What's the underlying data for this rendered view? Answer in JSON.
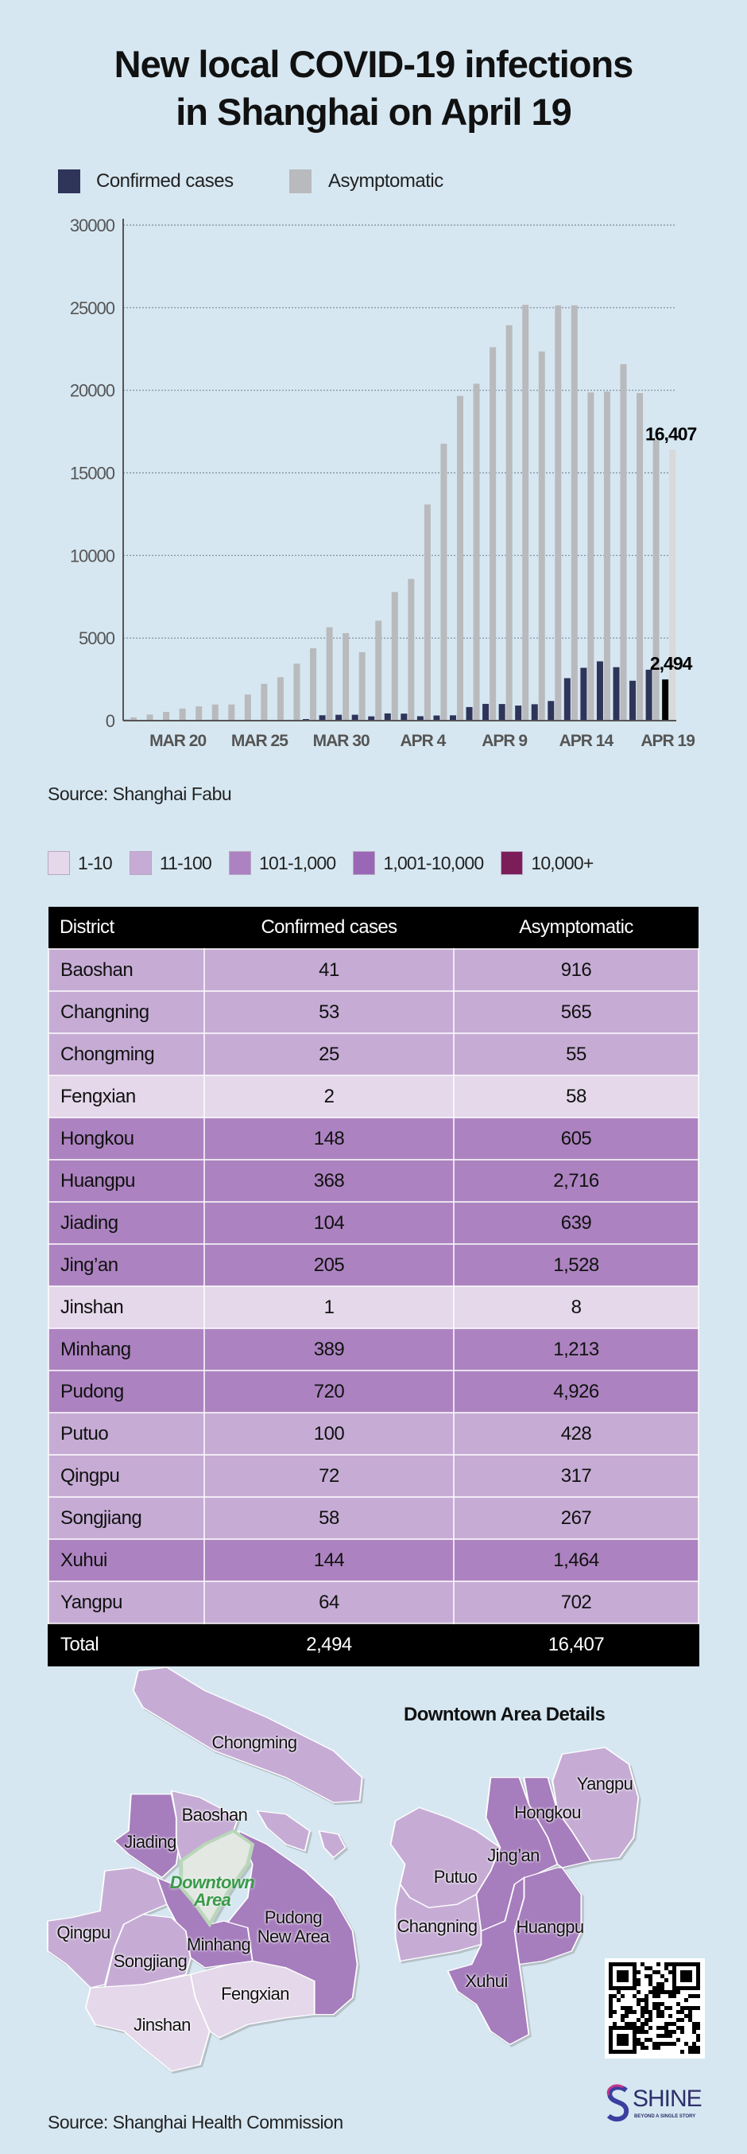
{
  "title": {
    "line1": "New local COVID-19 infections",
    "line2": "in Shanghai on April 19"
  },
  "chart_data": {
    "type": "bar",
    "title": "New local COVID-19 infections in Shanghai on April 19",
    "legend": [
      {
        "name": "Confirmed cases",
        "color": "#2f3459"
      },
      {
        "name": "Asymptomatic",
        "color": "#b9babd"
      }
    ],
    "legend_placement": "top-left",
    "x": [
      "Mar 17",
      "Mar 18",
      "Mar 19",
      "Mar 20",
      "Mar 21",
      "Mar 22",
      "Mar 23",
      "Mar 24",
      "Mar 25",
      "Mar 26",
      "Mar 27",
      "Mar 28",
      "Mar 29",
      "Mar 30",
      "Mar 31",
      "Apr 1",
      "Apr 2",
      "Apr 3",
      "Apr 4",
      "Apr 5",
      "Apr 6",
      "Apr 7",
      "Apr 8",
      "Apr 9",
      "Apr 10",
      "Apr 11",
      "Apr 12",
      "Apr 13",
      "Apr 14",
      "Apr 15",
      "Apr 16",
      "Apr 17",
      "Apr 18",
      "Apr 19"
    ],
    "x_tick_labels": [
      {
        "label": "MAR 20",
        "index": 3
      },
      {
        "label": "MAR 25",
        "index": 8
      },
      {
        "label": "MAR 30",
        "index": 13
      },
      {
        "label": "APR 4",
        "index": 18
      },
      {
        "label": "APR 9",
        "index": 23
      },
      {
        "label": "APR 14",
        "index": 28
      },
      {
        "label": "APR 19",
        "index": 33
      }
    ],
    "series": [
      {
        "name": "Confirmed cases",
        "values": [
          57,
          8,
          17,
          24,
          31,
          50,
          4,
          29,
          38,
          45,
          50,
          96,
          326,
          355,
          358,
          260,
          438,
          425,
          268,
          311,
          322,
          824,
          1015,
          1006,
          914,
          994,
          1189,
          2573,
          3200,
          3590,
          3238,
          2417,
          3084,
          2494
        ]
      },
      {
        "name": "Asymptomatic",
        "values": [
          200,
          370,
          530,
          734,
          865,
          977,
          979,
          1580,
          2231,
          2631,
          3450,
          4381,
          5656,
          5298,
          4144,
          6051,
          7788,
          8581,
          13086,
          16766,
          19660,
          20398,
          22609,
          23937,
          25173,
          22348,
          25141,
          25146,
          19872,
          19923,
          21582,
          19831,
          16983,
          16407
        ]
      }
    ],
    "yticks": [
      "0",
      "5000",
      "10000",
      "15000",
      "20000",
      "25000",
      "30000"
    ],
    "ylim": [
      0,
      30000
    ],
    "grid": true,
    "annotations": [
      {
        "text": "16,407",
        "series": "Asymptomatic",
        "index": 33
      },
      {
        "text": "2,494",
        "series": "Confirmed cases",
        "index": 33
      }
    ],
    "xlabel": "",
    "ylabel": "",
    "highlight_colors": {
      "confirmed_last": "#000000",
      "asym_last": "#d9d9d9"
    }
  },
  "chart_source": "Source: Shanghai Fabu",
  "color_legend": [
    {
      "label": "1-10",
      "color": "#e4d8ea"
    },
    {
      "label": "11-100",
      "color": "#c6acd5"
    },
    {
      "label": "101-1,000",
      "color": "#ac83c0"
    },
    {
      "label": "1,001-10,000",
      "color": "#9a67b6"
    },
    {
      "label": "10,000+",
      "color": "#7b1d58"
    }
  ],
  "table": {
    "headers": [
      "District",
      "Confirmed cases",
      "Asymptomatic"
    ],
    "rows": [
      {
        "district": "Baoshan",
        "confirmed": "41",
        "asymptomatic": "916",
        "level": 1
      },
      {
        "district": "Changning",
        "confirmed": "53",
        "asymptomatic": "565",
        "level": 1
      },
      {
        "district": "Chongming",
        "confirmed": "25",
        "asymptomatic": "55",
        "level": 1
      },
      {
        "district": "Fengxian",
        "confirmed": "2",
        "asymptomatic": "58",
        "level": 0
      },
      {
        "district": "Hongkou",
        "confirmed": "148",
        "asymptomatic": "605",
        "level": 2
      },
      {
        "district": "Huangpu",
        "confirmed": "368",
        "asymptomatic": "2,716",
        "level": 2
      },
      {
        "district": "Jiading",
        "confirmed": "104",
        "asymptomatic": "639",
        "level": 2
      },
      {
        "district": "Jing’an",
        "confirmed": "205",
        "asymptomatic": "1,528",
        "level": 2
      },
      {
        "district": "Jinshan",
        "confirmed": "1",
        "asymptomatic": "8",
        "level": 0
      },
      {
        "district": "Minhang",
        "confirmed": "389",
        "asymptomatic": "1,213",
        "level": 2
      },
      {
        "district": "Pudong",
        "confirmed": "720",
        "asymptomatic": "4,926",
        "level": 2
      },
      {
        "district": "Putuo",
        "confirmed": "100",
        "asymptomatic": "428",
        "level": 1
      },
      {
        "district": "Qingpu",
        "confirmed": "72",
        "asymptomatic": "317",
        "level": 1
      },
      {
        "district": "Songjiang",
        "confirmed": "58",
        "asymptomatic": "267",
        "level": 1
      },
      {
        "district": "Xuhui",
        "confirmed": "144",
        "asymptomatic": "1,464",
        "level": 2
      },
      {
        "district": "Yangpu",
        "confirmed": "64",
        "asymptomatic": "702",
        "level": 1
      }
    ],
    "total": {
      "label": "Total",
      "confirmed": "2,494",
      "asymptomatic": "16,407"
    }
  },
  "map": {
    "downtown_title": "Downtown Area Details",
    "labels": {
      "chongming": "Chongming",
      "baoshan": "Baoshan",
      "jiading": "Jiading",
      "downtown1": "Downtown",
      "downtown2": "Area",
      "pudong1": "Pudong",
      "pudong2": "New Area",
      "qingpu": "Qingpu",
      "minhang": "Minhang",
      "songjiang": "Songjiang",
      "fengxian": "Fengxian",
      "jinshan": "Jinshan",
      "yangpu": "Yangpu",
      "hongkou": "Hongkou",
      "jingan": "Jing’an",
      "putuo": "Putuo",
      "changning": "Changning",
      "huangpu": "Huangpu",
      "xuhui": "Xuhui"
    }
  },
  "map_source": "Source: Shanghai Health Commission",
  "brand": {
    "name": "SHINE",
    "tagline": "BEYOND A SINGLE STORY"
  }
}
